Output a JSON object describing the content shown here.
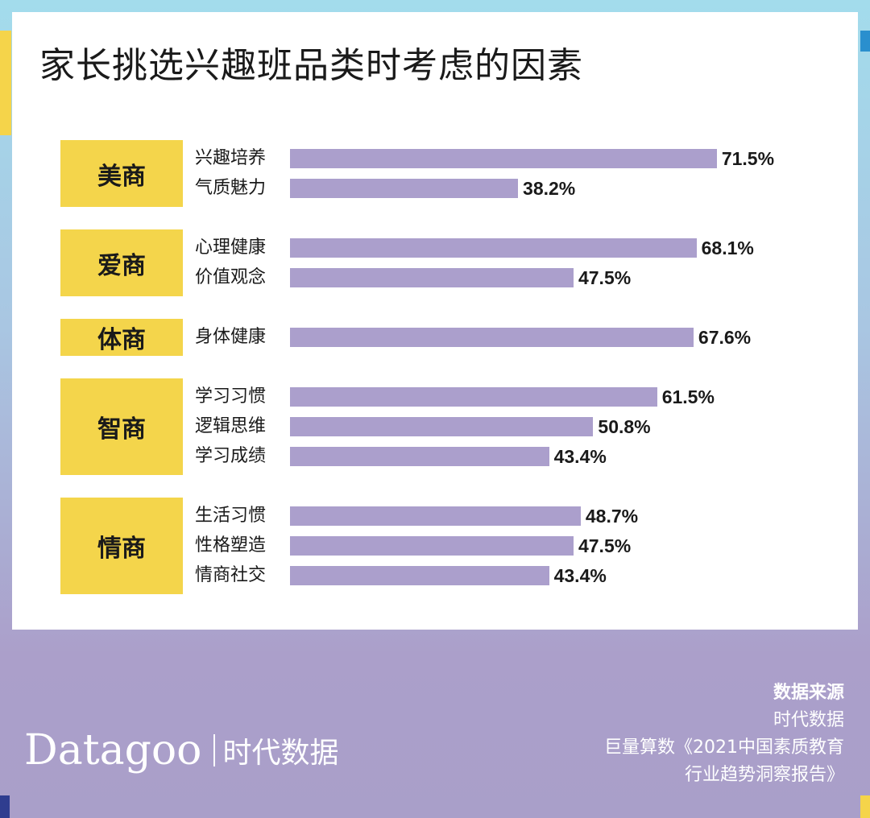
{
  "title": "家长挑选兴趣班品类时考虑的因素",
  "chart_data": {
    "type": "bar",
    "orientation": "horizontal",
    "groups": [
      {
        "name": "美商",
        "items": [
          {
            "label": "兴趣培养",
            "value": 71.5,
            "value_label": "71.5%"
          },
          {
            "label": "气质魅力",
            "value": 38.2,
            "value_label": "38.2%"
          }
        ]
      },
      {
        "name": "爱商",
        "items": [
          {
            "label": "心理健康",
            "value": 68.1,
            "value_label": "68.1%"
          },
          {
            "label": "价值观念",
            "value": 47.5,
            "value_label": "47.5%"
          }
        ]
      },
      {
        "name": "体商",
        "items": [
          {
            "label": "身体健康",
            "value": 67.6,
            "value_label": "67.6%"
          }
        ]
      },
      {
        "name": "智商",
        "items": [
          {
            "label": "学习习惯",
            "value": 61.5,
            "value_label": "61.5%"
          },
          {
            "label": "逻辑思维",
            "value": 50.8,
            "value_label": "50.8%"
          },
          {
            "label": "学习成绩",
            "value": 43.4,
            "value_label": "43.4%"
          }
        ]
      },
      {
        "name": "情商",
        "items": [
          {
            "label": "生活习惯",
            "value": 48.7,
            "value_label": "48.7%"
          },
          {
            "label": "性格塑造",
            "value": 47.5,
            "value_label": "47.5%"
          },
          {
            "label": "情商社交",
            "value": 43.4,
            "value_label": "43.4%"
          }
        ]
      }
    ],
    "colors": {
      "bar": "#ab9fcc",
      "category_badge": "#f4d54b"
    }
  },
  "footer": {
    "logo_text": "Datagoo",
    "logo_cn": "时代数据",
    "source_title": "数据来源",
    "source_lines": [
      "时代数据",
      "巨量算数《2021中国素质教育",
      "行业趋势洞察报告》"
    ]
  }
}
